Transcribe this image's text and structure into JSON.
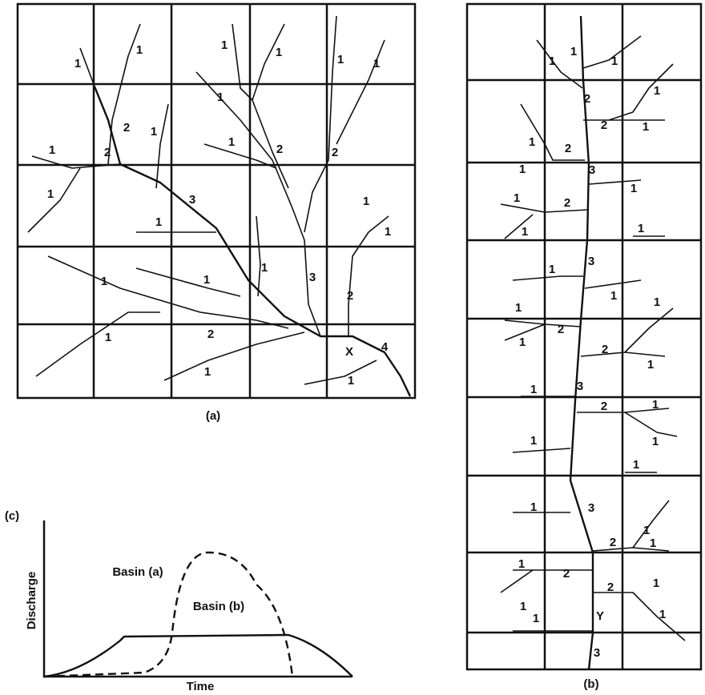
{
  "panel_a": {
    "caption": "(a)",
    "labels": [
      "1",
      "1",
      "1",
      "1",
      "1",
      "1",
      "1",
      "2",
      "1",
      "1",
      "2",
      "2",
      "1",
      "2",
      "1",
      "3",
      "1",
      "1",
      "1",
      "1",
      "1",
      "1",
      "3",
      "2",
      "1",
      "2",
      "1",
      "X",
      "4",
      "1"
    ]
  },
  "panel_b": {
    "caption": "(b)",
    "labels": [
      "1",
      "1",
      "1",
      "2",
      "1",
      "2",
      "1",
      "1",
      "2",
      "1",
      "3",
      "1",
      "1",
      "2",
      "1",
      "1",
      "3",
      "1",
      "1",
      "1",
      "1",
      "2",
      "1",
      "2",
      "1",
      "3",
      "1",
      "2",
      "1",
      "1",
      "1",
      "1",
      "3",
      "1",
      "1",
      "2",
      "1",
      "1",
      "2",
      "2",
      "1",
      "1",
      "1",
      "1",
      "Y",
      "3"
    ]
  },
  "panel_c": {
    "caption": "(c)",
    "y_axis": "Discharge",
    "x_axis": "Time",
    "curves": [
      "Basin (a)",
      "Basin (b)"
    ]
  }
}
